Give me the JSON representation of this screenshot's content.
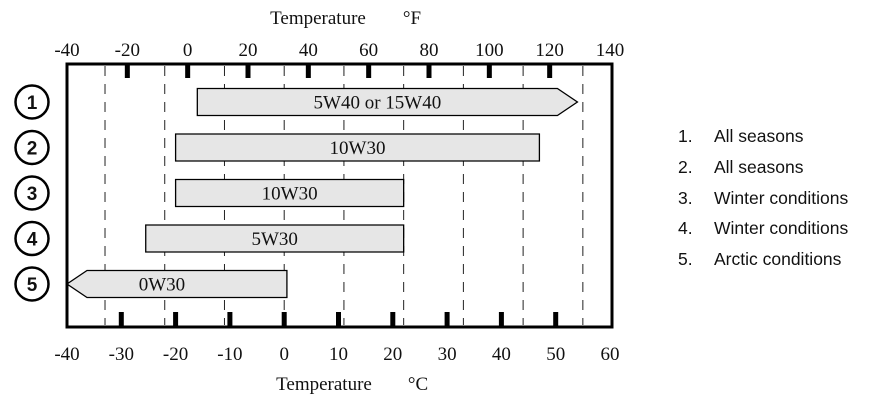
{
  "chart_data": {
    "type": "range-bar",
    "top_axis": {
      "label": "Temperature",
      "unit": "°F",
      "ticks": [
        -40,
        -20,
        0,
        20,
        40,
        60,
        80,
        100,
        120,
        140
      ]
    },
    "bottom_axis": {
      "label": "Temperature",
      "unit": "°C",
      "ticks": [
        -40,
        -30,
        -20,
        -10,
        0,
        10,
        20,
        30,
        40,
        50,
        60
      ]
    },
    "celsius_range": [
      -40,
      60
    ],
    "gridlines_celsius": [
      -33,
      -22,
      -11,
      0,
      11,
      22,
      33,
      44,
      55
    ],
    "bars": [
      {
        "id": "1",
        "label": "5W40 or 15W40",
        "min_c": -16,
        "max_c": 54,
        "arrow_right": true,
        "arrow_left": false
      },
      {
        "id": "2",
        "label": "10W30",
        "min_c": -20,
        "max_c": 47,
        "arrow_right": false,
        "arrow_left": false
      },
      {
        "id": "3",
        "label": "10W30",
        "min_c": -20,
        "max_c": 22,
        "arrow_right": false,
        "arrow_left": false
      },
      {
        "id": "4",
        "label": "5W30",
        "min_c": -25.5,
        "max_c": 22,
        "arrow_right": false,
        "arrow_left": false
      },
      {
        "id": "5",
        "label": "0W30",
        "min_c": -40,
        "max_c": 0.5,
        "arrow_right": false,
        "arrow_left": true
      }
    ]
  },
  "legend": [
    {
      "num": "1.",
      "text": "All seasons"
    },
    {
      "num": "2.",
      "text": "All seasons"
    },
    {
      "num": "3.",
      "text": "Winter conditions"
    },
    {
      "num": "4.",
      "text": "Winter conditions"
    },
    {
      "num": "5.",
      "text": "Arctic conditions"
    }
  ],
  "colors": {
    "bar_fill": "#e6e6e6",
    "stroke": "#000000",
    "background": "#ffffff"
  }
}
